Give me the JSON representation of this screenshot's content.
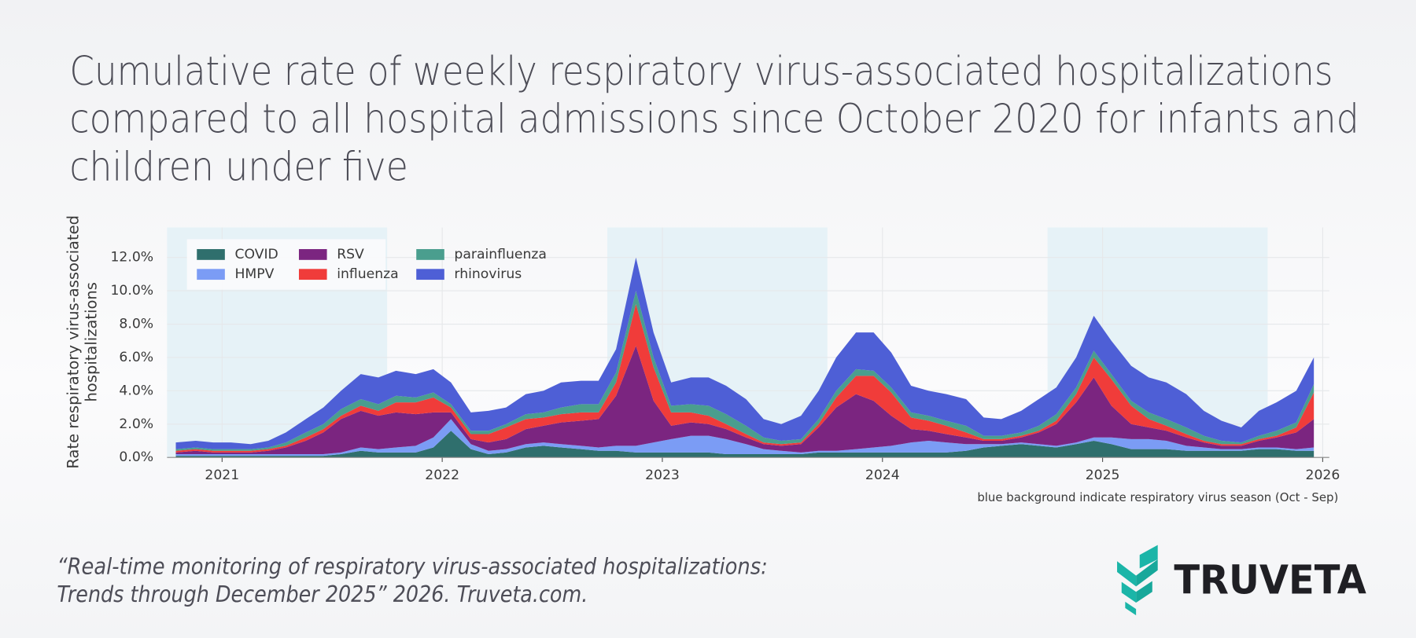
{
  "chart_data": {
    "type": "stacked_area",
    "title": [
      "Cumulative rate of weekly respiratory virus-associated hospitalizations",
      "compared to all hospital admissions since October 2020 for infants and",
      "children under five"
    ],
    "ylabel": [
      "Rate respiratory virus-associated",
      "hospitalizations"
    ],
    "note": "blue background indicate respiratory virus season (Oct - Sep)",
    "x": [
      2020.79,
      2020.88,
      2020.96,
      2021.04,
      2021.13,
      2021.21,
      2021.29,
      2021.38,
      2021.46,
      2021.54,
      2021.63,
      2021.71,
      2021.79,
      2021.88,
      2021.96,
      2022.04,
      2022.13,
      2022.21,
      2022.29,
      2022.38,
      2022.46,
      2022.54,
      2022.63,
      2022.71,
      2022.79,
      2022.88,
      2022.96,
      2023.04,
      2023.13,
      2023.21,
      2023.29,
      2023.38,
      2023.46,
      2023.54,
      2023.63,
      2023.71,
      2023.79,
      2023.88,
      2023.96,
      2024.04,
      2024.13,
      2024.21,
      2024.29,
      2024.38,
      2024.46,
      2024.54,
      2024.63,
      2024.71,
      2024.79,
      2024.88,
      2024.96,
      2025.04,
      2025.13,
      2025.21,
      2025.29,
      2025.38,
      2025.46,
      2025.54,
      2025.63,
      2025.71,
      2025.79,
      2025.88,
      2025.96
    ],
    "series": [
      {
        "name": "COVID",
        "color": "#2f6f6d",
        "values": [
          0.1,
          0.1,
          0.1,
          0.1,
          0.1,
          0.1,
          0.1,
          0.1,
          0.1,
          0.2,
          0.4,
          0.3,
          0.3,
          0.3,
          0.6,
          1.6,
          0.5,
          0.2,
          0.3,
          0.6,
          0.7,
          0.6,
          0.5,
          0.4,
          0.4,
          0.3,
          0.3,
          0.3,
          0.3,
          0.3,
          0.2,
          0.2,
          0.2,
          0.2,
          0.2,
          0.3,
          0.3,
          0.3,
          0.3,
          0.3,
          0.3,
          0.3,
          0.3,
          0.4,
          0.6,
          0.7,
          0.8,
          0.7,
          0.6,
          0.8,
          1.0,
          0.8,
          0.5,
          0.5,
          0.5,
          0.4,
          0.4,
          0.4,
          0.4,
          0.5,
          0.5,
          0.4,
          0.4
        ]
      },
      {
        "name": "HMPV",
        "color": "#7b9cf5",
        "values": [
          0.1,
          0.1,
          0.1,
          0.1,
          0.1,
          0.1,
          0.1,
          0.1,
          0.1,
          0.1,
          0.2,
          0.2,
          0.3,
          0.4,
          0.6,
          0.7,
          0.3,
          0.2,
          0.2,
          0.2,
          0.2,
          0.2,
          0.2,
          0.2,
          0.3,
          0.4,
          0.6,
          0.8,
          1.0,
          1.0,
          0.9,
          0.6,
          0.3,
          0.2,
          0.1,
          0.1,
          0.1,
          0.2,
          0.3,
          0.4,
          0.6,
          0.7,
          0.6,
          0.4,
          0.2,
          0.1,
          0.1,
          0.1,
          0.1,
          0.1,
          0.2,
          0.4,
          0.6,
          0.6,
          0.5,
          0.3,
          0.2,
          0.1,
          0.1,
          0.1,
          0.1,
          0.1,
          0.2
        ]
      },
      {
        "name": "RSV",
        "color": "#7b2580",
        "values": [
          0.1,
          0.2,
          0.1,
          0.1,
          0.1,
          0.2,
          0.4,
          0.8,
          1.3,
          2.0,
          2.2,
          2.0,
          2.1,
          1.9,
          1.5,
          0.4,
          0.3,
          0.5,
          0.6,
          0.9,
          1.0,
          1.3,
          1.5,
          1.7,
          3.0,
          6.0,
          2.5,
          0.8,
          0.8,
          0.7,
          0.6,
          0.4,
          0.3,
          0.3,
          0.5,
          1.4,
          2.6,
          3.3,
          2.8,
          1.8,
          0.8,
          0.6,
          0.5,
          0.4,
          0.2,
          0.2,
          0.3,
          0.7,
          1.3,
          2.4,
          3.6,
          1.9,
          0.9,
          0.7,
          0.6,
          0.5,
          0.3,
          0.2,
          0.2,
          0.4,
          0.6,
          1.0,
          1.7
        ]
      },
      {
        "name": "influenza",
        "color": "#f03c3a",
        "values": [
          0.1,
          0.1,
          0.1,
          0.1,
          0.1,
          0.1,
          0.1,
          0.2,
          0.2,
          0.2,
          0.3,
          0.3,
          0.6,
          0.7,
          0.9,
          0.3,
          0.3,
          0.5,
          0.7,
          0.6,
          0.5,
          0.5,
          0.5,
          0.4,
          0.8,
          2.5,
          2.0,
          0.8,
          0.6,
          0.5,
          0.3,
          0.2,
          0.1,
          0.1,
          0.1,
          0.2,
          0.6,
          1.1,
          1.5,
          1.4,
          0.7,
          0.6,
          0.5,
          0.3,
          0.1,
          0.1,
          0.1,
          0.1,
          0.2,
          0.5,
          1.2,
          1.6,
          1.1,
          0.5,
          0.3,
          0.2,
          0.1,
          0.1,
          0.1,
          0.1,
          0.1,
          0.3,
          1.6
        ]
      },
      {
        "name": "parainfluenza",
        "color": "#4a9e8e",
        "values": [
          0.1,
          0.1,
          0.1,
          0.1,
          0.1,
          0.1,
          0.2,
          0.3,
          0.3,
          0.4,
          0.4,
          0.4,
          0.4,
          0.3,
          0.3,
          0.2,
          0.2,
          0.2,
          0.2,
          0.3,
          0.3,
          0.4,
          0.5,
          0.5,
          0.6,
          0.8,
          0.6,
          0.4,
          0.5,
          0.6,
          0.6,
          0.5,
          0.3,
          0.2,
          0.2,
          0.3,
          0.4,
          0.4,
          0.3,
          0.3,
          0.3,
          0.3,
          0.3,
          0.4,
          0.2,
          0.2,
          0.2,
          0.3,
          0.4,
          0.4,
          0.4,
          0.3,
          0.3,
          0.4,
          0.4,
          0.4,
          0.3,
          0.2,
          0.1,
          0.2,
          0.3,
          0.3,
          0.5
        ]
      },
      {
        "name": "rhinovirus",
        "color": "#4e5fd6",
        "values": [
          0.4,
          0.4,
          0.4,
          0.4,
          0.3,
          0.4,
          0.6,
          0.8,
          1.0,
          1.1,
          1.5,
          1.6,
          1.5,
          1.4,
          1.4,
          1.3,
          1.1,
          1.2,
          1.0,
          1.2,
          1.3,
          1.5,
          1.4,
          1.4,
          1.4,
          2.0,
          1.5,
          1.4,
          1.6,
          1.7,
          1.7,
          1.6,
          1.1,
          1.0,
          1.4,
          1.7,
          2.0,
          2.2,
          2.3,
          2.1,
          1.6,
          1.5,
          1.6,
          1.6,
          1.1,
          1.0,
          1.3,
          1.6,
          1.6,
          1.8,
          2.1,
          2.0,
          2.1,
          2.1,
          2.2,
          2.0,
          1.5,
          1.2,
          0.9,
          1.5,
          1.7,
          1.9,
          1.6
        ]
      }
    ],
    "season_bands": [
      {
        "start": 2020.75,
        "end": 2021.75
      },
      {
        "start": 2022.75,
        "end": 2023.75
      },
      {
        "start": 2024.75,
        "end": 2025.75
      }
    ],
    "band_color": "#e6f2f7",
    "xlim": [
      2020.75,
      2026.03
    ],
    "xticks": [
      2021,
      2022,
      2023,
      2024,
      2025,
      2026
    ],
    "ylim": [
      0,
      13.8
    ],
    "yticks": [
      {
        "value": 0,
        "label": "0.0%"
      },
      {
        "value": 2,
        "label": "2.0%"
      },
      {
        "value": 4,
        "label": "4.0%"
      },
      {
        "value": 6,
        "label": "6.0%"
      },
      {
        "value": 8,
        "label": "8.0%"
      },
      {
        "value": 10,
        "label": "10.0%"
      },
      {
        "value": 12,
        "label": "12.0%"
      }
    ],
    "grid": true,
    "legend": "upper left"
  },
  "footer": {
    "citation": [
      "“Real-time monitoring of respiratory virus-associated hospitalizations:",
      "Trends through December 2025” 2026. Truveta.com."
    ],
    "brand": "TRUVETA"
  }
}
